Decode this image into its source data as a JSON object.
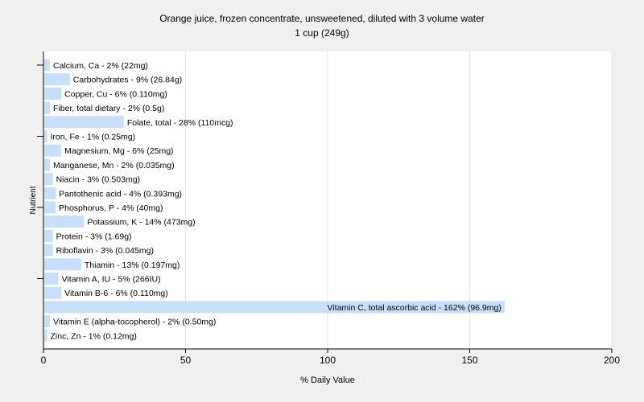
{
  "chart_data": {
    "type": "bar",
    "orientation": "horizontal",
    "title": "Orange juice, frozen concentrate, unsweetened, diluted with 3 volume water",
    "subtitle": "1 cup (249g)",
    "xlabel": "% Daily Value",
    "ylabel": "Nutrient",
    "xlim": [
      0,
      200
    ],
    "xticks": [
      0,
      50,
      100,
      150,
      200
    ],
    "grid": "vertical",
    "legend": "none",
    "bar_color": "#c8dffc",
    "background_color": "#f0f0f0",
    "plot_background_color": "#ffffff",
    "categories": [
      "Calcium, Ca",
      "Carbohydrates",
      "Copper, Cu",
      "Fiber, total dietary",
      "Folate, total",
      "Iron, Fe",
      "Magnesium, Mg",
      "Manganese, Mn",
      "Niacin",
      "Pantothenic acid",
      "Phosphorus, P",
      "Potassium, K",
      "Protein",
      "Riboflavin",
      "Thiamin",
      "Vitamin A, IU",
      "Vitamin B-6",
      "Vitamin C, total ascorbic acid",
      "Vitamin E (alpha-tocopherol)",
      "Zinc, Zn"
    ],
    "values": [
      2,
      9,
      6,
      2,
      28,
      1,
      6,
      2,
      3,
      4,
      4,
      14,
      3,
      3,
      13,
      5,
      6,
      162,
      2,
      1
    ],
    "labels": [
      "Calcium, Ca - 2% (22mg)",
      "Carbohydrates - 9% (26.84g)",
      "Copper, Cu - 6% (0.110mg)",
      "Fiber, total dietary - 2% (0.5g)",
      "Folate, total - 28% (110mcg)",
      "Iron, Fe - 1% (0.25mg)",
      "Magnesium, Mg - 6% (25mg)",
      "Manganese, Mn - 2% (0.035mg)",
      "Niacin - 3% (0.503mg)",
      "Pantothenic acid - 4% (0.393mg)",
      "Phosphorus, P - 4% (40mg)",
      "Potassium, K - 14% (473mg)",
      "Protein - 3% (1.69g)",
      "Riboflavin - 3% (0.045mg)",
      "Thiamin - 13% (0.197mg)",
      "Vitamin A, IU - 5% (266IU)",
      "Vitamin B-6 - 6% (0.110mg)",
      "Vitamin C, total ascorbic acid - 162% (96.9mg)",
      "Vitamin E (alpha-tocopherol) - 2% (0.50mg)",
      "Zinc, Zn - 1% (0.12mg)"
    ]
  }
}
